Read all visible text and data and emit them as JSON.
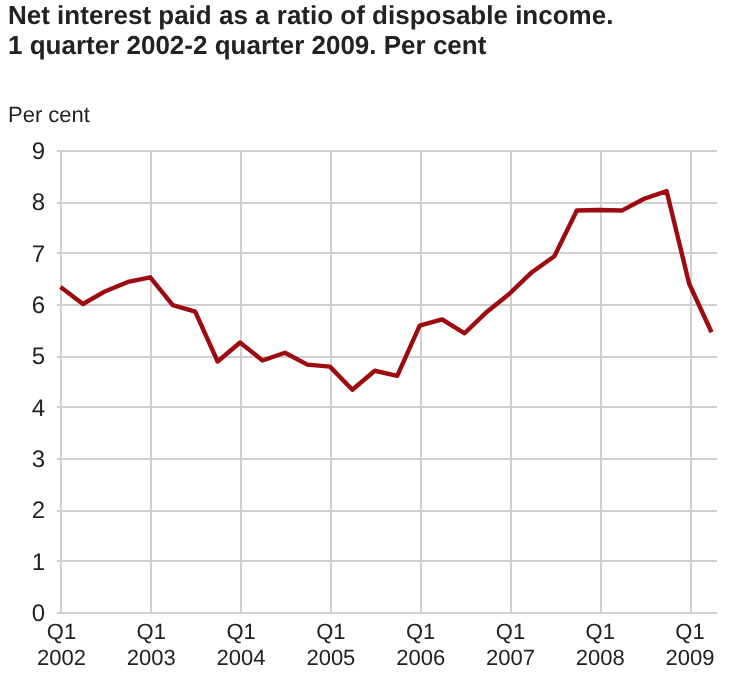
{
  "chart_data": {
    "type": "line",
    "title": "Net interest paid as a ratio of disposable income.\n1 quarter 2002-2 quarter 2009. Per cent",
    "ylabel": "Per cent",
    "categories": [
      "Q1\n2002",
      null,
      null,
      null,
      "Q1\n2003",
      null,
      null,
      null,
      "Q1\n2004",
      null,
      null,
      null,
      "Q1\n2005",
      null,
      null,
      null,
      "Q1\n2006",
      null,
      null,
      null,
      "Q1\n2007",
      null,
      null,
      null,
      "Q1\n2008",
      null,
      null,
      null,
      "Q1\n2009",
      null
    ],
    "series": [
      {
        "color": "#9e0b0f",
        "values": [
          6.33,
          6.0,
          6.25,
          6.43,
          6.52,
          5.98,
          5.85,
          4.88,
          5.25,
          4.9,
          5.05,
          4.82,
          4.78,
          4.33,
          4.7,
          4.6,
          5.58,
          5.7,
          5.43,
          5.85,
          6.2,
          6.62,
          6.93,
          7.82,
          7.83,
          7.82,
          8.05,
          8.2,
          6.4,
          5.45
        ]
      }
    ],
    "ylim": [
      0,
      9
    ],
    "yticks": [
      0,
      1,
      2,
      3,
      4,
      5,
      6,
      7,
      8,
      9
    ],
    "grid": true,
    "marker": "none",
    "line_style": "solid"
  }
}
